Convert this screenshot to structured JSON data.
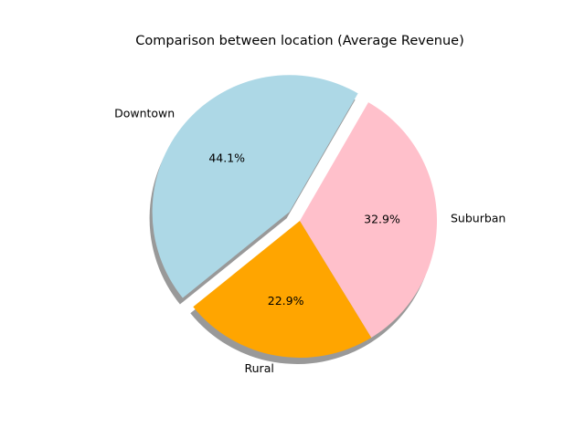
{
  "chart_data": {
    "type": "pie",
    "title": "Comparison between location (Average Revenue)",
    "slices": [
      {
        "label": "Downtown",
        "value": 44.1,
        "pct_text": "44.1%",
        "color": "#add8e6",
        "exploded": true
      },
      {
        "label": "Rural",
        "value": 22.9,
        "pct_text": "22.9%",
        "color": "#ffa500",
        "exploded": false
      },
      {
        "label": "Suburban",
        "value": 32.9,
        "pct_text": "32.9%",
        "color": "#ffc0cb",
        "exploded": false
      }
    ],
    "start_angle_deg": 60,
    "direction": "counterclockwise",
    "shadow": true
  }
}
